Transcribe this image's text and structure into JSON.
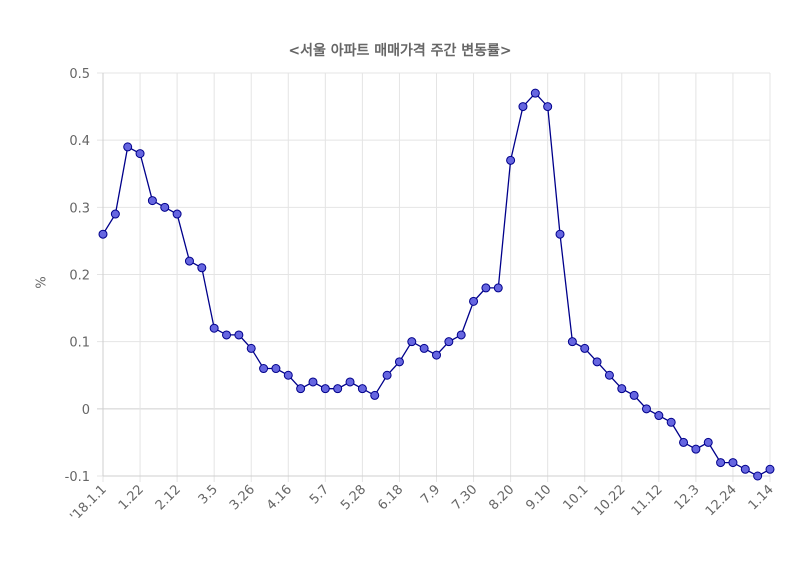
{
  "chart_data": {
    "type": "line",
    "title": "<서울 아파트 매매가격 주간 변동률>",
    "xlabel": "",
    "ylabel": "%",
    "ylim": [
      -0.1,
      0.5
    ],
    "yticks": [
      -0.1,
      0,
      0.1,
      0.2,
      0.3,
      0.4,
      0.5
    ],
    "ytick_labels": [
      "-0.1",
      "0",
      "0.1",
      "0.2",
      "0.3",
      "0.4",
      "0.5"
    ],
    "grid": true,
    "xtick_labels": [
      "'18.1.1",
      "1.22",
      "2.12",
      "3.5",
      "3.26",
      "4.16",
      "5.7",
      "5.28",
      "6.18",
      "7.9",
      "7.30",
      "8.20",
      "9.10",
      "10.1",
      "10.22",
      "11.12",
      "12.3",
      "12.24",
      "1.14"
    ],
    "xtick_positions": [
      0,
      3,
      6,
      9,
      12,
      15,
      18,
      21,
      24,
      27,
      30,
      33,
      36,
      39,
      42,
      45,
      48,
      51,
      54
    ],
    "series": [
      {
        "color": "#00008b",
        "marker_fill": "#6666e0",
        "values": [
          0.26,
          0.29,
          0.39,
          0.38,
          0.31,
          0.3,
          0.29,
          0.22,
          0.21,
          0.12,
          0.11,
          0.11,
          0.09,
          0.06,
          0.06,
          0.05,
          0.03,
          0.04,
          0.03,
          0.03,
          0.04,
          0.03,
          0.02,
          0.05,
          0.07,
          0.1,
          0.09,
          0.08,
          0.1,
          0.11,
          0.16,
          0.18,
          0.18,
          0.37,
          0.45,
          0.47,
          0.45,
          0.26,
          0.1,
          0.09,
          0.07,
          0.05,
          0.03,
          0.02,
          0.0,
          -0.01,
          -0.02,
          -0.05,
          -0.06,
          -0.05,
          -0.08,
          -0.08,
          -0.09,
          -0.1,
          -0.09
        ]
      }
    ]
  }
}
